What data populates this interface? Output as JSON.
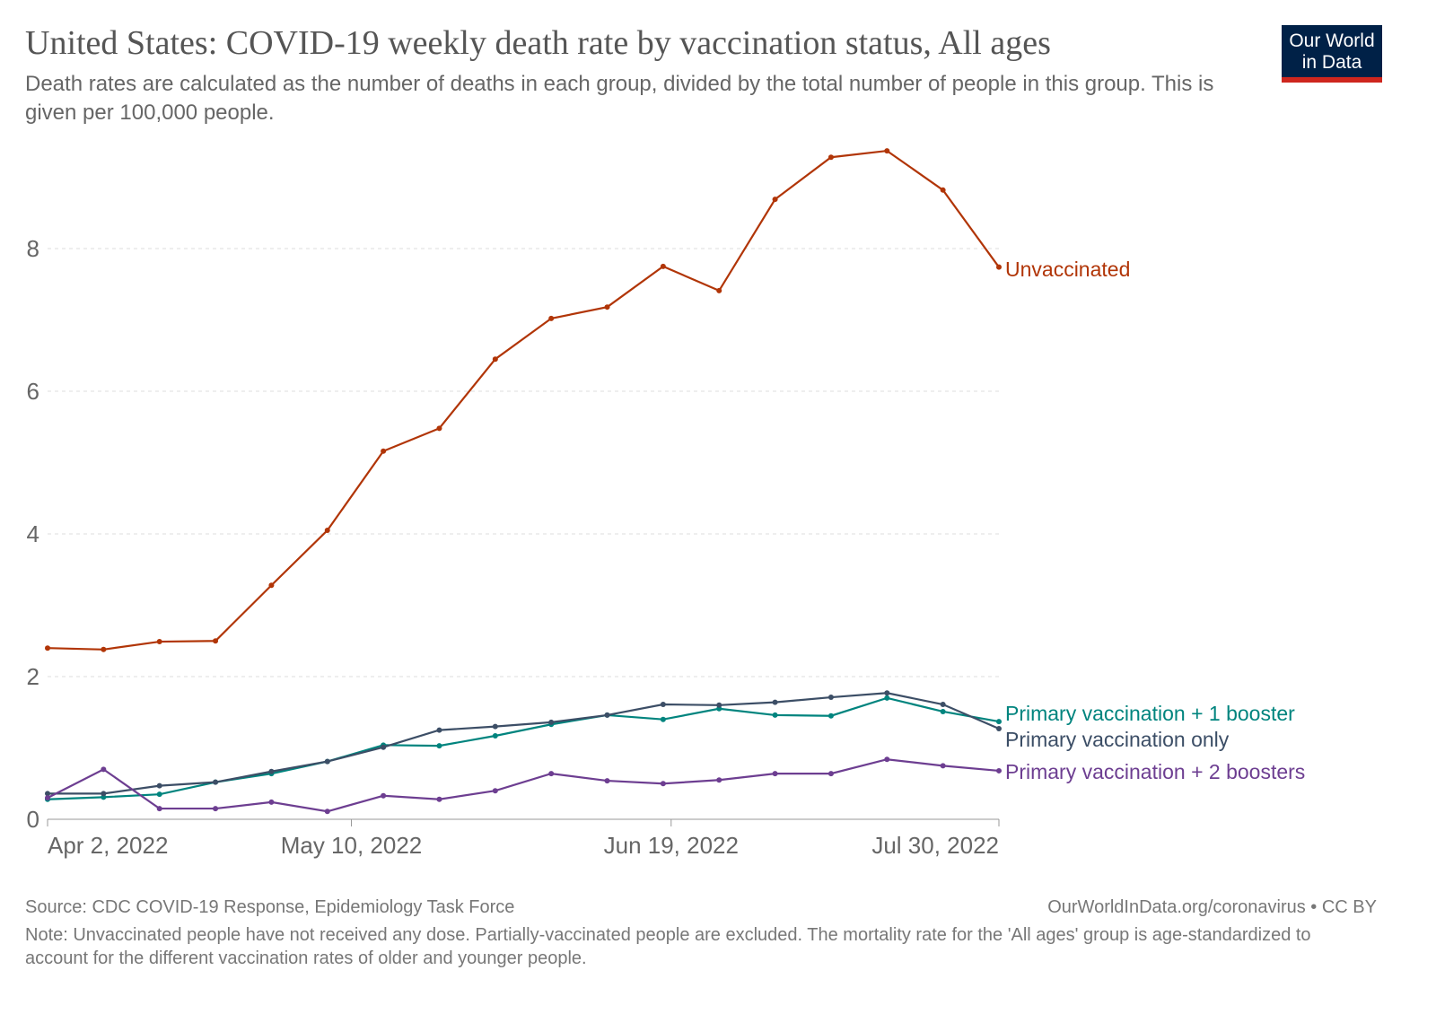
{
  "header": {
    "title": "United States: COVID-19 weekly death rate by vaccination status, All ages",
    "subtitle": "Death rates are calculated as the number of deaths in each group, divided by the total number of people in this group. This is given per 100,000 people.",
    "logo": "Our World in Data",
    "logo_line1": "Our World",
    "logo_line2": "in Data"
  },
  "footer": {
    "source": "Source: CDC COVID-19 Response, Epidemiology Task Force",
    "credit": "OurWorldInData.org/coronavirus • CC BY",
    "note": "Note: Unvaccinated people have not received any dose. Partially-vaccinated people are excluded. The mortality rate for the 'All ages' group is age-standardized to account for the different vaccination rates of older and younger people."
  },
  "chart_data": {
    "type": "line",
    "title": "United States: COVID-19 weekly death rate by vaccination status, All ages",
    "x": [
      "2022-04-02",
      "2022-04-09",
      "2022-04-16",
      "2022-04-23",
      "2022-04-30",
      "2022-05-07",
      "2022-05-14",
      "2022-05-21",
      "2022-05-28",
      "2022-06-04",
      "2022-06-11",
      "2022-06-18",
      "2022-06-25",
      "2022-07-02",
      "2022-07-09",
      "2022-07-16",
      "2022-07-23",
      "2022-07-30"
    ],
    "x_ticks": [
      {
        "date": "2022-04-02",
        "label": "Apr 2, 2022"
      },
      {
        "date": "2022-05-10",
        "label": "May 10, 2022"
      },
      {
        "date": "2022-06-19",
        "label": "Jun 19, 2022"
      },
      {
        "date": "2022-07-30",
        "label": "Jul 30, 2022"
      }
    ],
    "y_ticks": [
      0,
      2,
      4,
      6,
      8
    ],
    "ylim": [
      0,
      9.5
    ],
    "grid": "horizontal dashed",
    "legend": "inline labels at line ends (right)",
    "series": [
      {
        "name": "Unvaccinated",
        "color": "#b13507",
        "values": [
          2.4,
          2.38,
          2.49,
          2.5,
          3.28,
          4.05,
          5.16,
          5.48,
          6.45,
          7.02,
          7.18,
          7.75,
          7.41,
          8.69,
          9.28,
          9.37,
          8.82,
          7.74
        ]
      },
      {
        "name": "Primary vaccination + 1 booster",
        "color": "#00847e",
        "values": [
          0.28,
          0.31,
          0.35,
          0.52,
          0.64,
          0.81,
          1.04,
          1.03,
          1.17,
          1.33,
          1.46,
          1.4,
          1.55,
          1.46,
          1.45,
          1.7,
          1.51,
          1.37
        ]
      },
      {
        "name": "Primary vaccination only",
        "color": "#3c4e66",
        "values": [
          0.36,
          0.36,
          0.47,
          0.52,
          0.67,
          0.81,
          1.01,
          1.25,
          1.3,
          1.36,
          1.46,
          1.61,
          1.6,
          1.64,
          1.71,
          1.77,
          1.61,
          1.27
        ]
      },
      {
        "name": "Primary vaccination + 2 boosters",
        "color": "#6d3e91",
        "values": [
          0.3,
          0.7,
          0.15,
          0.15,
          0.24,
          0.11,
          0.33,
          0.28,
          0.4,
          0.64,
          0.54,
          0.5,
          0.55,
          0.64,
          0.64,
          0.84,
          0.75,
          0.68
        ]
      }
    ]
  }
}
